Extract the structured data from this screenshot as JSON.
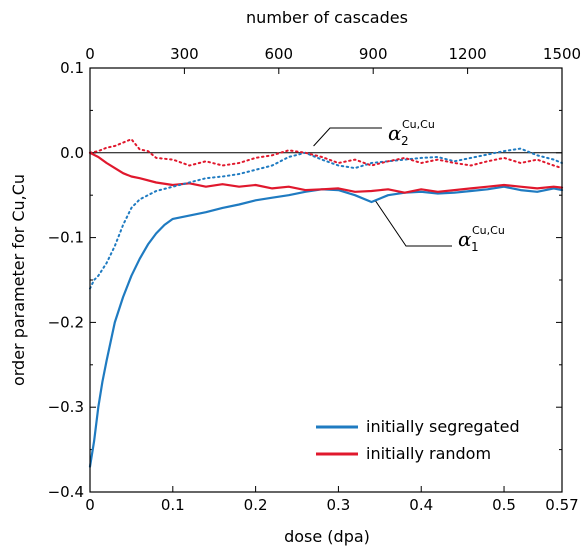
{
  "chart_data": {
    "type": "line",
    "xlabel": "dose (dpa)",
    "ylabel": "order parameter for Cu,Cu",
    "x2label": "number of cascades",
    "xlim": [
      0,
      0.57
    ],
    "ylim": [
      -0.4,
      0.1
    ],
    "x2lim": [
      0,
      1500
    ],
    "xticks": [
      "0",
      "0.1",
      "0.2",
      "0.3",
      "0.4",
      "0.5",
      "0.57"
    ],
    "yticks": [
      "0.1",
      "0.0",
      "−0.1",
      "−0.2",
      "−0.3",
      "−0.4"
    ],
    "x2ticks": [
      "0",
      "300",
      "600",
      "900",
      "1200",
      "1500"
    ],
    "reference_line_y": 0,
    "legend": {
      "position": "bottom-right",
      "entries": [
        {
          "label": "initially segregated",
          "color": "#1f7bc1"
        },
        {
          "label": "initially random",
          "color": "#e0182d"
        }
      ]
    },
    "annotations": [
      {
        "main": "α",
        "sub": "2",
        "sup": "Cu,Cu",
        "points_to": "dotted curves",
        "anchor": [
          0.27,
          0.008
        ]
      },
      {
        "main": "α",
        "sub": "1",
        "sup": "Cu,Cu",
        "points_to": "solid curves",
        "anchor": [
          0.345,
          -0.057
        ]
      }
    ],
    "series": [
      {
        "legend": "initially segregated",
        "parameter": "α1",
        "style": "solid",
        "color": "#1f7bc1",
        "x": [
          0,
          0.005,
          0.01,
          0.015,
          0.02,
          0.03,
          0.04,
          0.05,
          0.06,
          0.07,
          0.08,
          0.09,
          0.1,
          0.12,
          0.14,
          0.16,
          0.18,
          0.2,
          0.22,
          0.24,
          0.26,
          0.28,
          0.3,
          0.32,
          0.34,
          0.36,
          0.38,
          0.4,
          0.42,
          0.44,
          0.46,
          0.48,
          0.5,
          0.52,
          0.54,
          0.56,
          0.57
        ],
        "y": [
          -0.37,
          -0.34,
          -0.3,
          -0.27,
          -0.245,
          -0.2,
          -0.17,
          -0.145,
          -0.125,
          -0.108,
          -0.095,
          -0.085,
          -0.078,
          -0.074,
          -0.07,
          -0.065,
          -0.061,
          -0.056,
          -0.053,
          -0.05,
          -0.046,
          -0.043,
          -0.044,
          -0.05,
          -0.058,
          -0.05,
          -0.047,
          -0.046,
          -0.048,
          -0.047,
          -0.045,
          -0.043,
          -0.04,
          -0.044,
          -0.046,
          -0.042,
          -0.044
        ]
      },
      {
        "legend": "initially random",
        "parameter": "α1",
        "style": "solid",
        "color": "#e0182d",
        "x": [
          0,
          0.01,
          0.02,
          0.03,
          0.04,
          0.05,
          0.06,
          0.08,
          0.1,
          0.12,
          0.14,
          0.16,
          0.18,
          0.2,
          0.22,
          0.24,
          0.26,
          0.28,
          0.3,
          0.32,
          0.34,
          0.36,
          0.38,
          0.4,
          0.42,
          0.44,
          0.46,
          0.48,
          0.5,
          0.52,
          0.54,
          0.56,
          0.57
        ],
        "y": [
          0,
          -0.005,
          -0.012,
          -0.018,
          -0.024,
          -0.028,
          -0.03,
          -0.035,
          -0.038,
          -0.036,
          -0.04,
          -0.037,
          -0.04,
          -0.038,
          -0.042,
          -0.04,
          -0.044,
          -0.043,
          -0.042,
          -0.046,
          -0.045,
          -0.043,
          -0.047,
          -0.043,
          -0.046,
          -0.044,
          -0.042,
          -0.04,
          -0.038,
          -0.04,
          -0.042,
          -0.04,
          -0.041
        ]
      },
      {
        "legend": "initially segregated",
        "parameter": "α2",
        "style": "dotted",
        "color": "#1f7bc1",
        "x": [
          0,
          0.005,
          0.01,
          0.02,
          0.03,
          0.04,
          0.05,
          0.06,
          0.08,
          0.1,
          0.12,
          0.14,
          0.16,
          0.18,
          0.2,
          0.22,
          0.24,
          0.26,
          0.28,
          0.3,
          0.32,
          0.34,
          0.36,
          0.38,
          0.4,
          0.42,
          0.44,
          0.46,
          0.48,
          0.5,
          0.52,
          0.54,
          0.56,
          0.57
        ],
        "y": [
          -0.16,
          -0.15,
          -0.145,
          -0.13,
          -0.11,
          -0.085,
          -0.065,
          -0.055,
          -0.045,
          -0.04,
          -0.035,
          -0.03,
          -0.028,
          -0.025,
          -0.02,
          -0.015,
          -0.005,
          0,
          -0.008,
          -0.015,
          -0.018,
          -0.012,
          -0.01,
          -0.008,
          -0.006,
          -0.005,
          -0.01,
          -0.006,
          -0.002,
          0.002,
          0.005,
          -0.003,
          -0.008,
          -0.012
        ]
      },
      {
        "legend": "initially random",
        "parameter": "α2",
        "style": "dotted",
        "color": "#e0182d",
        "x": [
          0,
          0.01,
          0.02,
          0.03,
          0.04,
          0.05,
          0.06,
          0.07,
          0.08,
          0.1,
          0.12,
          0.14,
          0.16,
          0.18,
          0.2,
          0.22,
          0.24,
          0.26,
          0.28,
          0.3,
          0.32,
          0.34,
          0.36,
          0.38,
          0.4,
          0.42,
          0.44,
          0.46,
          0.48,
          0.5,
          0.52,
          0.54,
          0.56,
          0.57
        ],
        "y": [
          0,
          0.002,
          0.006,
          0.008,
          0.012,
          0.016,
          0.004,
          0.002,
          -0.006,
          -0.008,
          -0.015,
          -0.01,
          -0.015,
          -0.012,
          -0.006,
          -0.003,
          0.003,
          0,
          -0.005,
          -0.012,
          -0.008,
          -0.015,
          -0.01,
          -0.006,
          -0.012,
          -0.008,
          -0.012,
          -0.015,
          -0.01,
          -0.006,
          -0.012,
          -0.008,
          -0.015,
          -0.018
        ]
      }
    ]
  }
}
